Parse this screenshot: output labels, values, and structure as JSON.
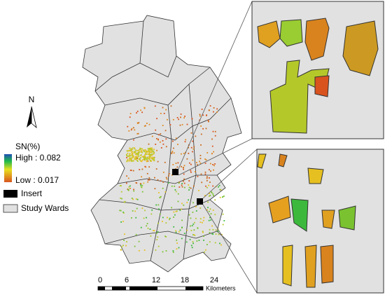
{
  "north": "N",
  "legend": {
    "title": "SN(%)",
    "high": "High : 0.082",
    "low": "Low : 0.017",
    "insert": "Insert",
    "wards": "Study Wards"
  },
  "scale_bar": {
    "labels": [
      "0",
      "6",
      "12",
      "18",
      "24"
    ],
    "unit": "Kilometers"
  }
}
